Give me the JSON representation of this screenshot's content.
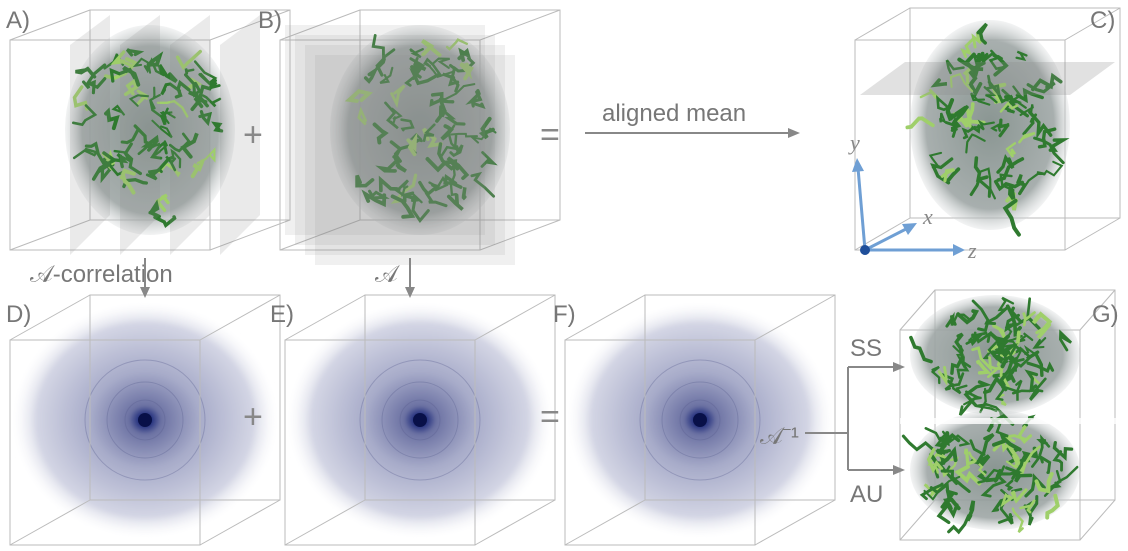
{
  "panels": [
    {
      "label": "A)"
    },
    {
      "label": "B)"
    },
    {
      "label": "C)"
    },
    {
      "label": "D)"
    },
    {
      "label": "E)"
    },
    {
      "label": "F)"
    },
    {
      "label": "G)"
    }
  ],
  "operators": {
    "top_plus": "+",
    "top_equals": "=",
    "bottom_plus": "+",
    "bottom_equals": "="
  },
  "arrows": {
    "aligned_mean": "aligned mean",
    "a_correlation": "𝒜-correlation",
    "a_transform": "𝒜",
    "inverse": "𝒜⁻¹",
    "ss": "SS",
    "au": "AU"
  },
  "axes": {
    "y": "y",
    "x": "x",
    "z": "z"
  }
}
